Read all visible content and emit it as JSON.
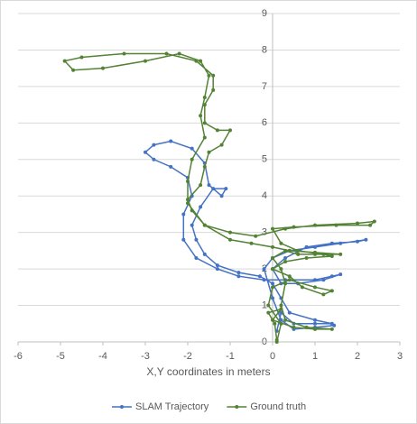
{
  "chart_data": {
    "type": "scatter",
    "x_label": "X,Y coordinates in meters",
    "xlim": [
      -6,
      3
    ],
    "xticks": [
      -6,
      -5,
      -4,
      -3,
      -2,
      -1,
      0,
      1,
      2,
      3
    ],
    "ylim": [
      0,
      9
    ],
    "yticks": [
      0,
      1,
      2,
      3,
      4,
      5,
      6,
      7,
      8,
      9
    ],
    "grid": true,
    "legend": "bottom",
    "series": [
      {
        "name": "SLAM Trajectory",
        "color": "#4472c4",
        "x": [
          0.1,
          0.2,
          0.5,
          1.0,
          1.4,
          1.0,
          0.4,
          0.2,
          0.0,
          -0.3,
          -0.8,
          -1.3,
          -1.6,
          -1.8,
          -1.9,
          -1.7,
          -1.4,
          -1.1,
          -1.2,
          -1.5,
          -1.6,
          -1.9,
          -2.4,
          -2.8,
          -3.0,
          -2.8,
          -2.4,
          -2.0,
          -1.9,
          -2.1,
          -2.1,
          -1.8,
          -1.3,
          -0.8,
          -0.2,
          0.3,
          1.0,
          1.4,
          1.6,
          1.2,
          0.6,
          0.2,
          0.0,
          0.3,
          0.8,
          1.4,
          2.0,
          2.2,
          1.6,
          1.0,
          0.4,
          0.0,
          -0.2,
          0.0,
          0.2,
          0.5,
          1.0,
          1.45
        ],
        "y": [
          0.3,
          0.8,
          0.5,
          0.5,
          0.5,
          0.6,
          0.8,
          1.2,
          1.6,
          1.8,
          1.9,
          2.1,
          2.4,
          2.8,
          3.2,
          3.7,
          4.2,
          4.2,
          4.0,
          4.3,
          4.9,
          5.3,
          5.5,
          5.4,
          5.2,
          5.0,
          4.8,
          4.5,
          4.0,
          3.5,
          2.8,
          2.3,
          2.0,
          1.8,
          1.7,
          1.7,
          1.7,
          1.8,
          1.85,
          1.7,
          1.6,
          1.6,
          2.0,
          2.3,
          2.6,
          2.7,
          2.75,
          2.8,
          2.7,
          2.6,
          2.5,
          2.3,
          2.0,
          1.2,
          0.6,
          0.35,
          0.4,
          0.45
        ]
      },
      {
        "name": "Ground truth",
        "color": "#548235",
        "x": [
          0.1,
          0.05,
          -0.1,
          0.2,
          0.0,
          0.5,
          1.0,
          1.4,
          0.8,
          0.3,
          0.2,
          0.3,
          0.2,
          0.0,
          0.3,
          0.6,
          1.0,
          1.6,
          1.0,
          0.4,
          0.0,
          -0.5,
          -1.0,
          -1.6,
          -1.9,
          -2.0,
          -1.7,
          -1.6,
          -1.5,
          -1.2,
          -1.0,
          -1.3,
          -1.6,
          -1.6,
          -1.4,
          -1.4,
          -1.8,
          -2.5,
          -3.5,
          -4.5,
          -4.9,
          -4.7,
          -4.0,
          -3.0,
          -2.2,
          -1.7,
          -1.5,
          -1.6,
          -1.7,
          -1.6,
          -1.9,
          -2.0,
          -2.0,
          -1.6,
          -1.0,
          -0.4,
          0.3,
          1.0,
          2.0,
          2.4,
          2.3,
          1.5,
          0.5,
          0.0,
          0.2,
          0.6,
          1.2,
          1.4,
          0.8,
          0.3,
          0.0,
          0.4,
          0.7,
          1.2,
          1.4,
          1.0,
          0.4,
          0.0,
          -0.1,
          0.2,
          0.1
        ],
        "y": [
          0.05,
          0.5,
          0.8,
          0.9,
          0.6,
          0.4,
          0.35,
          0.35,
          0.4,
          0.6,
          1.0,
          1.6,
          2.0,
          2.3,
          2.5,
          2.4,
          2.4,
          2.4,
          2.45,
          2.5,
          2.6,
          2.7,
          2.8,
          3.2,
          3.6,
          3.9,
          4.3,
          4.8,
          5.2,
          5.4,
          5.8,
          5.8,
          6.0,
          6.5,
          6.9,
          7.3,
          7.7,
          7.9,
          7.9,
          7.8,
          7.7,
          7.45,
          7.5,
          7.7,
          7.9,
          7.7,
          7.3,
          6.7,
          6.2,
          5.6,
          5.0,
          4.4,
          3.8,
          3.2,
          3.0,
          2.9,
          3.1,
          3.2,
          3.25,
          3.3,
          3.2,
          3.2,
          3.15,
          3.1,
          2.7,
          2.5,
          2.4,
          2.35,
          2.3,
          2.2,
          2.0,
          1.8,
          1.5,
          1.3,
          1.4,
          1.5,
          1.7,
          1.5,
          1.0,
          0.5,
          0.0
        ]
      }
    ]
  }
}
